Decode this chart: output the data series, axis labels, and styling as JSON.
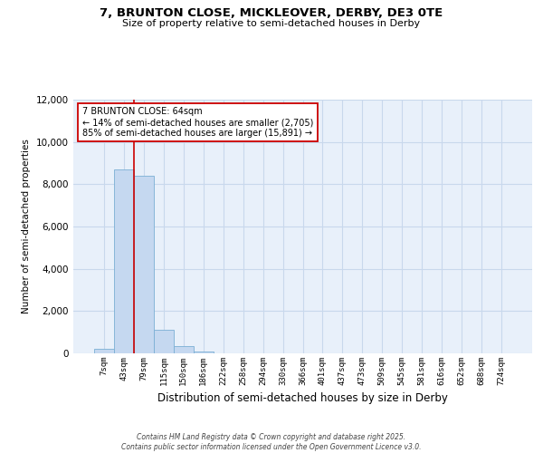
{
  "title_line1": "7, BRUNTON CLOSE, MICKLEOVER, DERBY, DE3 0TE",
  "title_line2": "Size of property relative to semi-detached houses in Derby",
  "xlabel": "Distribution of semi-detached houses by size in Derby",
  "ylabel": "Number of semi-detached properties",
  "categories": [
    "7sqm",
    "43sqm",
    "79sqm",
    "115sqm",
    "150sqm",
    "186sqm",
    "222sqm",
    "258sqm",
    "294sqm",
    "330sqm",
    "366sqm",
    "401sqm",
    "437sqm",
    "473sqm",
    "509sqm",
    "545sqm",
    "581sqm",
    "616sqm",
    "652sqm",
    "688sqm",
    "724sqm"
  ],
  "values": [
    200,
    8700,
    8400,
    1100,
    350,
    70,
    10,
    0,
    0,
    0,
    0,
    0,
    0,
    0,
    0,
    0,
    0,
    0,
    0,
    0,
    0
  ],
  "bar_color": "#c5d8f0",
  "bar_edge_color": "#7aafd4",
  "grid_color": "#c8d8ec",
  "background_color": "#e8f0fa",
  "vline_x": 1.5,
  "vline_color": "#cc0000",
  "annotation_text": "7 BRUNTON CLOSE: 64sqm\n← 14% of semi-detached houses are smaller (2,705)\n85% of semi-detached houses are larger (15,891) →",
  "annotation_box_color": "#ffffff",
  "annotation_box_edge": "#cc0000",
  "footer_text": "Contains HM Land Registry data © Crown copyright and database right 2025.\nContains public sector information licensed under the Open Government Licence v3.0.",
  "ylim": [
    0,
    12000
  ],
  "yticks": [
    0,
    2000,
    4000,
    6000,
    8000,
    10000,
    12000
  ]
}
